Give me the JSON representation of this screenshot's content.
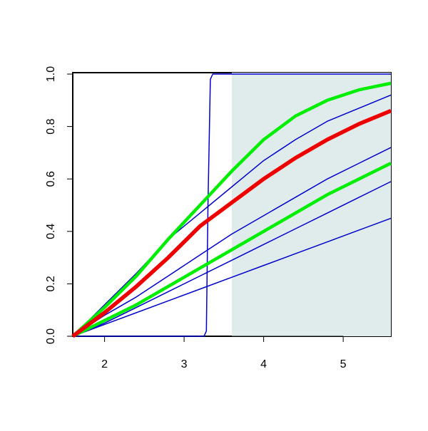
{
  "chart_data": {
    "type": "line",
    "x": [
      1.6,
      2.0,
      2.4,
      2.8,
      3.2,
      3.6,
      4.0,
      4.4,
      4.8,
      5.2,
      5.6
    ],
    "shaded_region": [
      3.6,
      5.6
    ],
    "shade_color": "#e0ecec",
    "series": [
      {
        "color": "#0000cc",
        "width": 1.5,
        "values": [
          0,
          0.12,
          0.24,
          0.37,
          0.47,
          0.57,
          0.67,
          0.75,
          0.82,
          0.87,
          0.92
        ]
      },
      {
        "color": "#0000cc",
        "width": 1.5,
        "values": [
          0,
          0.08,
          0.15,
          0.23,
          0.31,
          0.39,
          0.46,
          0.53,
          0.6,
          0.66,
          0.72
        ]
      },
      {
        "color": "#0000cc",
        "width": 1.5,
        "values": [
          0,
          0.05,
          0.11,
          0.17,
          0.23,
          0.29,
          0.35,
          0.41,
          0.47,
          0.53,
          0.59
        ]
      },
      {
        "color": "#0000cc",
        "width": 1.5,
        "values": [
          0,
          0.045,
          0.09,
          0.135,
          0.18,
          0.225,
          0.27,
          0.315,
          0.36,
          0.405,
          0.45
        ]
      },
      {
        "color": "#0000cc",
        "width": 1.5,
        "x": [
          1.6,
          3.25,
          3.28,
          3.3,
          3.33,
          3.36,
          5.6
        ],
        "values": [
          0,
          0,
          0.02,
          0.5,
          0.98,
          1,
          1
        ]
      },
      {
        "color": "#00ee00",
        "width": 4.5,
        "values": [
          0,
          0.11,
          0.23,
          0.37,
          0.5,
          0.63,
          0.75,
          0.84,
          0.9,
          0.94,
          0.965
        ]
      },
      {
        "color": "#00ee00",
        "width": 4.5,
        "values": [
          0,
          0.06,
          0.12,
          0.19,
          0.26,
          0.33,
          0.4,
          0.47,
          0.54,
          0.6,
          0.66
        ]
      },
      {
        "color": "#ee0000",
        "width": 5.5,
        "values": [
          0,
          0.09,
          0.19,
          0.3,
          0.42,
          0.51,
          0.6,
          0.68,
          0.75,
          0.81,
          0.86
        ]
      }
    ],
    "xlim": [
      1.6,
      5.6
    ],
    "ylim": [
      0,
      1
    ],
    "xticks": [
      2,
      3,
      4,
      5
    ],
    "yticks": [
      {
        "value": 0,
        "label": "0.0"
      },
      0.2,
      0.4,
      0.6,
      0.8,
      {
        "value": 1,
        "label": "1.0"
      }
    ]
  }
}
